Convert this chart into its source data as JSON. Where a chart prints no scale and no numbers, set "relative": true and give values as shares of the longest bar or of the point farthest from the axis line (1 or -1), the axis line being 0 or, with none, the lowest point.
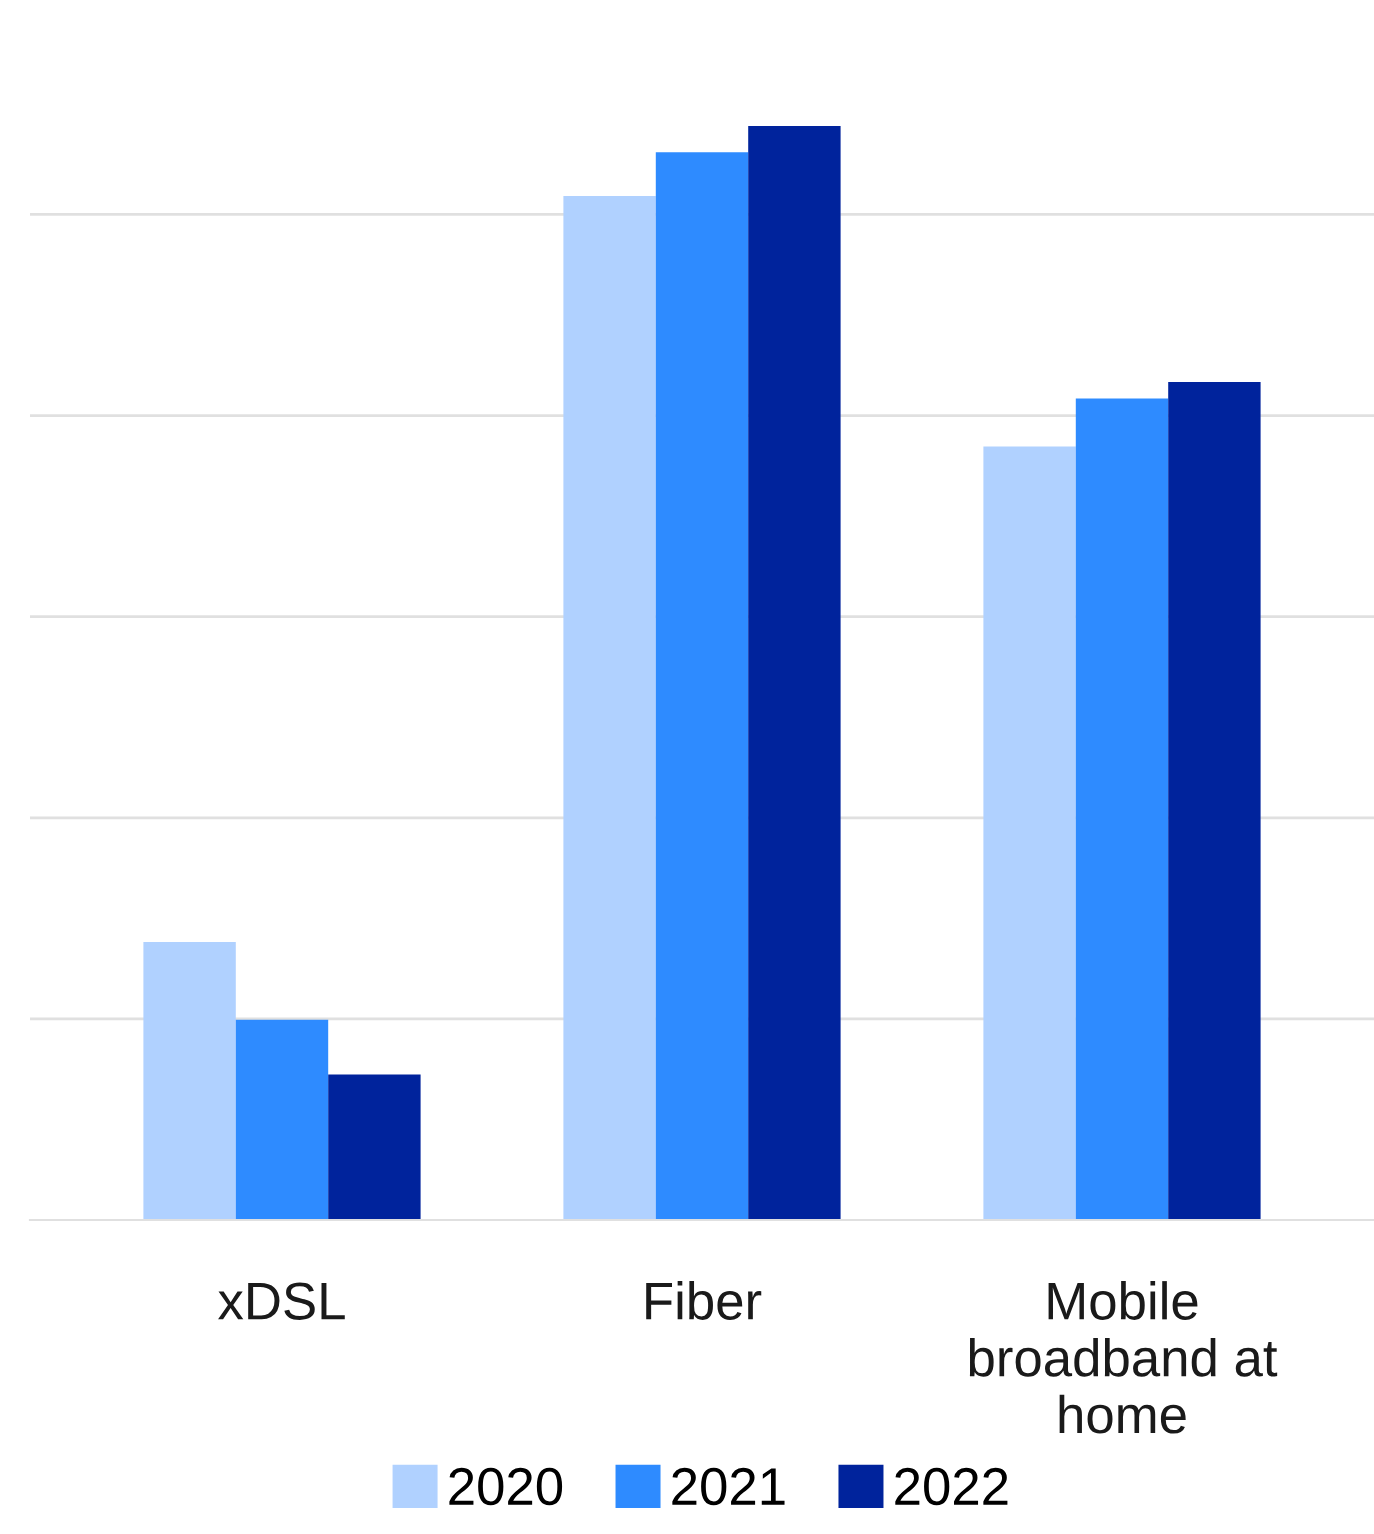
{
  "chart_data": {
    "type": "bar",
    "relative": true,
    "categories": [
      "xDSL",
      "Fiber",
      "Mobile broadband at home"
    ],
    "series": [
      {
        "name": "2020",
        "color": "#b0d1ff",
        "values": [
          0.254,
          0.936,
          0.707
        ]
      },
      {
        "name": "2021",
        "color": "#2e8bff",
        "values": [
          0.183,
          0.976,
          0.751
        ]
      },
      {
        "name": "2022",
        "color": "#00239c",
        "values": [
          0.133,
          1,
          0.766
        ]
      }
    ],
    "grid": "y",
    "legend": "bottom"
  }
}
